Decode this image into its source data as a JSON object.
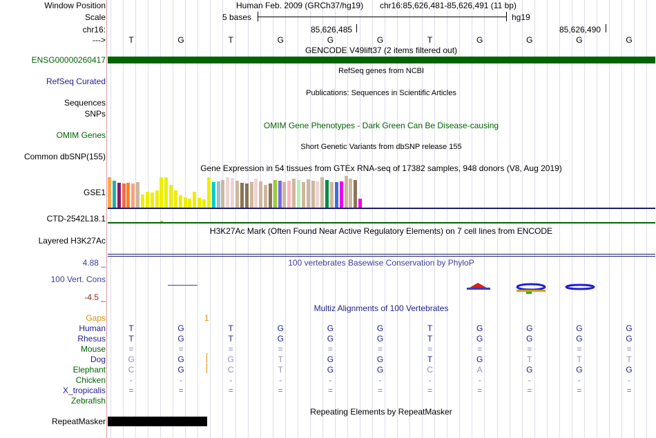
{
  "header": {
    "window_position_label": "Window Position",
    "assembly_text": "Human Feb. 2009 (GRCh37/hg19)",
    "position_text": "chr16:85,626,481-85,626,491 (11 bp)",
    "scale_label": "Scale",
    "scale_text": "5 bases",
    "scale_db": "hg19",
    "chrom_label": "chr16:",
    "coord_1": "85,626,485",
    "coord_2": "85,626,490",
    "strand_label": "--->"
  },
  "base_sequence": [
    "T",
    "G",
    "T",
    "G",
    "G",
    "G",
    "T",
    "G",
    "G",
    "G",
    "G"
  ],
  "tracks": {
    "gencode": {
      "title": "GENCODE V49lift37 (2 items filtered out)",
      "item_label": "ENSG00000260417",
      "color": "#006400"
    },
    "refseq": {
      "title": "RefSeq genes from NCBI",
      "label": "RefSeq Curated"
    },
    "publications": {
      "title": "Publications: Sequences in Scientific Articles",
      "label_1": "Sequences",
      "label_2": "SNPs"
    },
    "omim": {
      "title": "OMIM Gene Phenotypes - Dark Green Can Be Disease-causing",
      "label": "OMIM Genes"
    },
    "dbsnp": {
      "title": "Short Genetic Variants from dbSNP release 155",
      "label": "Common dbSNP(155)"
    },
    "gtex": {
      "title": "Gene Expression in 54 tissues from GTEx RNA-seq of 17382 samples, 948 donors (V8, Aug 2019)",
      "label": "GSE1",
      "gene_label": "CTD-2542L18.1",
      "expression_values": [
        0.95,
        0.85,
        0.78,
        0.75,
        0.78,
        0.75,
        0.8,
        0.42,
        0.5,
        0.48,
        0.55,
        0.95,
        0.95,
        0.72,
        0.55,
        0.4,
        0.32,
        0.28,
        0.5,
        0.3,
        0.25,
        0.95,
        0.8,
        0.82,
        0.88,
        0.95,
        0.93,
        0.85,
        0.78,
        0.75,
        0.8,
        0.92,
        0.82,
        0.72,
        0.75,
        0.88,
        0.85,
        0.8,
        0.85,
        0.92,
        0.88,
        0.8,
        0.9,
        0.85,
        0.82,
        0.95,
        0.88,
        0.8,
        0.8,
        0.82,
        1.0,
        0.92,
        0.88,
        0.28
      ],
      "bar_colors": [
        "#ffa54f",
        "#20b2aa",
        "#8b1c62",
        "#ee6a50",
        "#ff7f24",
        "#ffa07a",
        "#cdb79e",
        "#eeee00",
        "#eeee00",
        "#eeee00",
        "#eeee00",
        "#eeee00",
        "#eeee00",
        "#eeee00",
        "#eeee00",
        "#eeee00",
        "#eeee00",
        "#eeee00",
        "#eeee00",
        "#eeee00",
        "#eeee00",
        "#eeee00",
        "#00cdcd",
        "#9ac0cd",
        "#cdb79e",
        "#eed5d2",
        "#eed5d2",
        "#cdb79e",
        "#8b7355",
        "#8b7355",
        "#cdb79e",
        "#eed5d2",
        "#cdb79e",
        "#cdb79e",
        "#8b7355",
        "#9acd32",
        "#7a67ee",
        "#cdb79e",
        "#ffb6c1",
        "#cdb79e",
        "#b4eeb4",
        "#cdb79e",
        "#cdb79e",
        "#cdb79e",
        "#eed5d2",
        "#cdb79e",
        "#008b45",
        "#cdb79e",
        "#4169e1",
        "#ee00ee",
        "#cdb79e",
        "#cdb79e",
        "#8b7355",
        "#ee00ee"
      ]
    },
    "h3k27ac": {
      "title": "H3K27Ac Mark (Often Found Near Active Regulatory Elements) on 7 cell lines from ENCODE",
      "label": "Layered H3K27Ac"
    },
    "phylop": {
      "title": "100 vertebrates Basewise Conservation by PhyloP",
      "label": "100 Vert. Cons",
      "max_label": "4.88 _",
      "min_label": "-4.5 _"
    },
    "multiz": {
      "title": "Multiz Alignments of 100 Vertebrates",
      "gaps_label": "Gaps",
      "gap_count": "1",
      "species": [
        {
          "name": "Human",
          "bases": [
            "T",
            "G",
            "T",
            "G",
            "G",
            "G",
            "T",
            "G",
            "G",
            "G",
            "G"
          ]
        },
        {
          "name": "Rhesus",
          "bases": [
            "T",
            "G",
            "T",
            "G",
            "G",
            "G",
            "T",
            "G",
            "G",
            "G",
            "G"
          ]
        },
        {
          "name": "Mouse",
          "bases": [
            "=",
            "=",
            "=",
            "=",
            "=",
            "=",
            "=",
            "=",
            "=",
            "=",
            "="
          ]
        },
        {
          "name": "Dog",
          "bases": [
            "G",
            "G",
            "G",
            "T",
            "G",
            "G",
            "T",
            "G",
            "T",
            "T",
            "T"
          ]
        },
        {
          "name": "Elephant",
          "bases": [
            "C",
            "G",
            "C",
            "T",
            "G",
            "G",
            "C",
            "A",
            "G",
            "G",
            "G"
          ]
        },
        {
          "name": "Chicken",
          "bases": [
            "-",
            "-",
            "-",
            "-",
            "-",
            "-",
            "-",
            "-",
            "-",
            "-",
            "-"
          ]
        },
        {
          "name": "X_tropicalis",
          "bases": [
            "=",
            "=",
            "=",
            "=",
            "=",
            "=",
            "=",
            "=",
            "=",
            "=",
            "="
          ]
        },
        {
          "name": "Zebrafish",
          "bases": [
            "",
            "",
            "",
            "",
            "",
            "",
            "",
            "",
            "",
            "",
            ""
          ]
        }
      ]
    },
    "repeatmasker": {
      "title": "Repeating Elements by RepeatMasker",
      "label": "RepeatMasker"
    }
  },
  "colors": {
    "label_blue": "#1e1e8c",
    "label_green": "#006400",
    "gaps_orange": "#e08c00",
    "phylop_blue": "#3c3c9c",
    "phylop_red": "#8c2a1e",
    "separator_blue": "#1a1a6e"
  }
}
